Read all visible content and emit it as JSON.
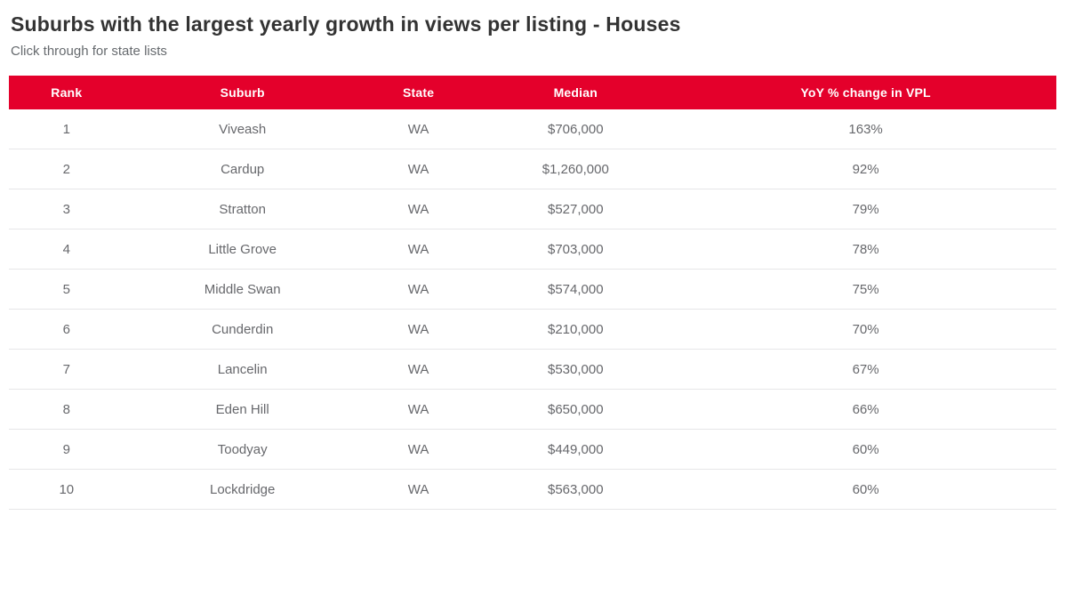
{
  "colors": {
    "accent": "#e4002b",
    "header_text": "#ffffff",
    "body_text": "#67686c",
    "title_text": "#333333",
    "divider": "#e6e6e8"
  },
  "chart_data": {
    "type": "table",
    "title": "Suburbs with the largest yearly growth in views per listing - Houses",
    "subtitle": "Click through for state lists",
    "columns": [
      "Rank",
      "Suburb",
      "State",
      "Median",
      "YoY % change in VPL"
    ],
    "rows": [
      {
        "rank": "1",
        "suburb": "Viveash",
        "state": "WA",
        "median": "$706,000",
        "yoy": "163%"
      },
      {
        "rank": "2",
        "suburb": "Cardup",
        "state": "WA",
        "median": "$1,260,000",
        "yoy": "92%"
      },
      {
        "rank": "3",
        "suburb": "Stratton",
        "state": "WA",
        "median": "$527,000",
        "yoy": "79%"
      },
      {
        "rank": "4",
        "suburb": "Little Grove",
        "state": "WA",
        "median": "$703,000",
        "yoy": "78%"
      },
      {
        "rank": "5",
        "suburb": "Middle Swan",
        "state": "WA",
        "median": "$574,000",
        "yoy": "75%"
      },
      {
        "rank": "6",
        "suburb": "Cunderdin",
        "state": "WA",
        "median": "$210,000",
        "yoy": "70%"
      },
      {
        "rank": "7",
        "suburb": "Lancelin",
        "state": "WA",
        "median": "$530,000",
        "yoy": "67%"
      },
      {
        "rank": "8",
        "suburb": "Eden Hill",
        "state": "WA",
        "median": "$650,000",
        "yoy": "66%"
      },
      {
        "rank": "9",
        "suburb": "Toodyay",
        "state": "WA",
        "median": "$449,000",
        "yoy": "60%"
      },
      {
        "rank": "10",
        "suburb": "Lockdridge",
        "state": "WA",
        "median": "$563,000",
        "yoy": "60%"
      }
    ]
  }
}
